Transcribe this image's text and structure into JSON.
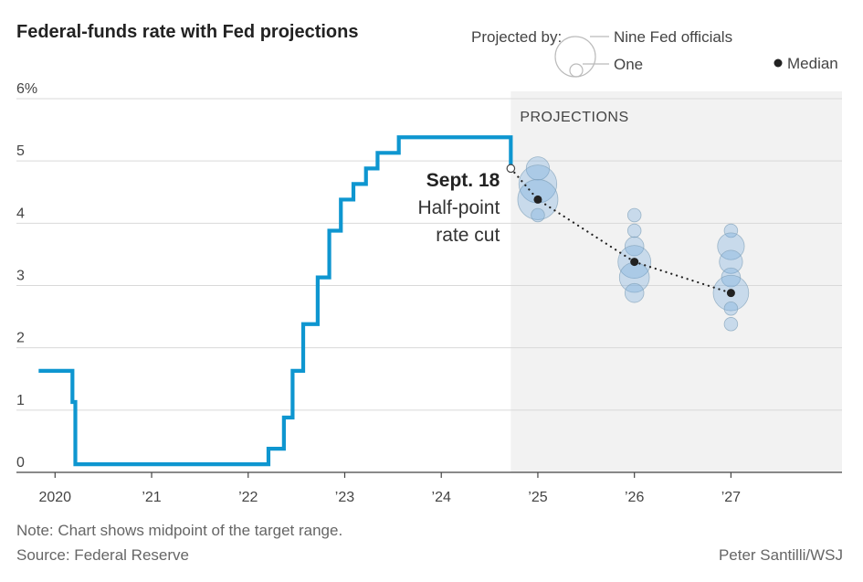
{
  "title": "Federal-funds rate with Fed projections",
  "legend": {
    "projected_by": "Projected by:",
    "nine": "Nine Fed officials",
    "one": "One",
    "median": "Median"
  },
  "note": "Note: Chart shows midpoint of the target range.",
  "source": "Source: Federal Reserve",
  "credit": "Peter Santilli/WSJ",
  "colors": {
    "rate_line": "#0e96d0",
    "bubble_fill": "#6fa8dc",
    "projection_bg": "#f2f2f2",
    "median": "#222222"
  },
  "chart_data": {
    "type": "line",
    "ylabel": "",
    "y_ticks": [
      "0",
      "1",
      "2",
      "3",
      "4",
      "5",
      "6%"
    ],
    "y_tick_values": [
      0,
      1,
      2,
      3,
      4,
      5,
      6
    ],
    "ylim": [
      0,
      6
    ],
    "x_ticks": [
      "2020",
      "’21",
      "’22",
      "’23",
      "’24",
      "’25",
      "’26",
      "’27"
    ],
    "x_tick_values": [
      2020,
      2021,
      2022,
      2023,
      2024,
      2025,
      2026,
      2027
    ],
    "xlim": [
      2019.6,
      2028.15
    ],
    "grid": true,
    "projection_label": "PROJECTIONS",
    "projection_start": 2024.72,
    "series": [
      {
        "points": [
          [
            2019.83,
            1.63
          ],
          [
            2020.18,
            1.63
          ],
          [
            2020.18,
            1.13
          ],
          [
            2020.21,
            1.13
          ],
          [
            2020.21,
            0.13
          ],
          [
            2022.21,
            0.13
          ],
          [
            2022.21,
            0.38
          ],
          [
            2022.37,
            0.38
          ],
          [
            2022.37,
            0.88
          ],
          [
            2022.46,
            0.88
          ],
          [
            2022.46,
            1.63
          ],
          [
            2022.57,
            1.63
          ],
          [
            2022.57,
            2.38
          ],
          [
            2022.72,
            2.38
          ],
          [
            2022.72,
            3.13
          ],
          [
            2022.84,
            3.13
          ],
          [
            2022.84,
            3.88
          ],
          [
            2022.96,
            3.88
          ],
          [
            2022.96,
            4.38
          ],
          [
            2023.09,
            4.38
          ],
          [
            2023.09,
            4.63
          ],
          [
            2023.22,
            4.63
          ],
          [
            2023.22,
            4.88
          ],
          [
            2023.34,
            4.88
          ],
          [
            2023.34,
            5.13
          ],
          [
            2023.56,
            5.13
          ],
          [
            2023.56,
            5.38
          ],
          [
            2024.72,
            5.38
          ],
          [
            2024.72,
            4.88
          ]
        ]
      }
    ],
    "median": {
      "x": [
        2024.72,
        2025,
        2026,
        2027
      ],
      "values": [
        4.88,
        4.38,
        3.38,
        2.88
      ]
    },
    "projections": [
      {
        "x": 2025,
        "dots": [
          [
            4.88,
            3
          ],
          [
            4.63,
            8
          ],
          [
            4.38,
            9
          ],
          [
            4.13,
            1
          ]
        ]
      },
      {
        "x": 2026,
        "dots": [
          [
            4.13,
            1
          ],
          [
            3.88,
            1
          ],
          [
            3.63,
            2
          ],
          [
            3.38,
            6
          ],
          [
            3.13,
            5
          ],
          [
            2.88,
            2
          ]
        ]
      },
      {
        "x": 2027,
        "dots": [
          [
            3.88,
            1
          ],
          [
            3.63,
            4
          ],
          [
            3.38,
            3
          ],
          [
            3.13,
            2
          ],
          [
            2.88,
            7
          ],
          [
            2.63,
            1
          ],
          [
            2.38,
            1
          ]
        ]
      }
    ],
    "annotation": {
      "date": "Sept. 18",
      "line1": "Half-point",
      "line2": "rate cut"
    }
  }
}
